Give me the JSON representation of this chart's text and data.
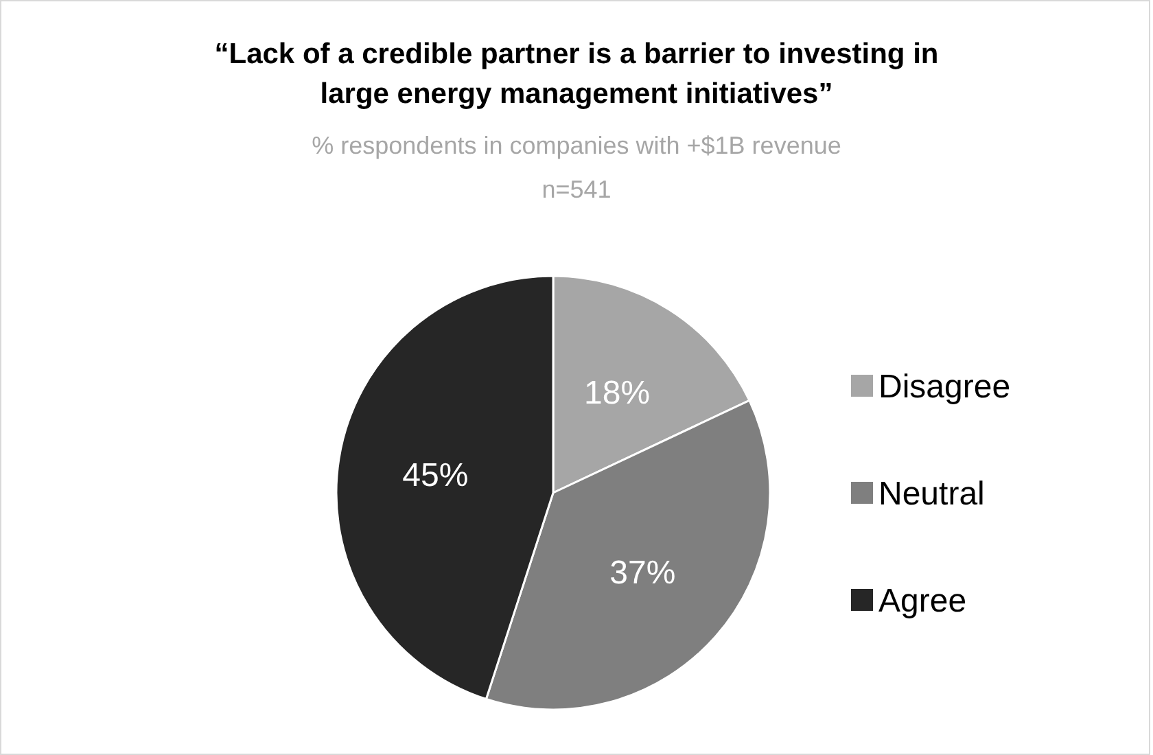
{
  "chart_data": {
    "type": "pie",
    "title": "“Lack of a credible partner is a barrier to investing in large energy management initiatives”",
    "subtitle": "% respondents in companies with +$1B revenue",
    "annotations": [
      "n=541"
    ],
    "categories": [
      "Disagree",
      "Neutral",
      "Agree"
    ],
    "values": [
      18,
      37,
      45
    ],
    "value_labels": [
      "18%",
      "37%",
      "45%"
    ],
    "colors": [
      "#a6a6a6",
      "#7f7f7f",
      "#262626"
    ],
    "legend": "right"
  }
}
